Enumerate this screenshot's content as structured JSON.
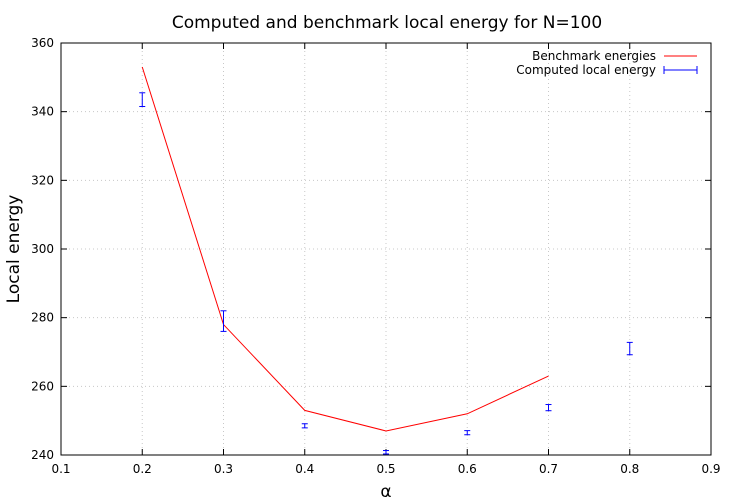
{
  "chart_data": {
    "type": "line",
    "title": "Computed and benchmark local energy for N=100",
    "xlabel": "α",
    "ylabel": "Local energy",
    "xlim": [
      0.1,
      0.9
    ],
    "ylim": [
      240,
      360
    ],
    "xticks": [
      "0.1",
      "0.2",
      "0.3",
      "0.4",
      "0.5",
      "0.6",
      "0.7",
      "0.8",
      "0.9"
    ],
    "yticks": [
      "240",
      "260",
      "280",
      "300",
      "320",
      "340",
      "360"
    ],
    "grid": true,
    "legend_position": "top-right",
    "series": [
      {
        "name": "Benchmark energies",
        "style": "line",
        "color": "#ff0000",
        "x": [
          0.2,
          0.3,
          0.4,
          0.5,
          0.6,
          0.7
        ],
        "y": [
          353,
          278,
          253,
          247,
          252,
          263
        ]
      },
      {
        "name": "Computed local energy",
        "style": "errorbar",
        "color": "#0000ff",
        "x": [
          0.2,
          0.3,
          0.4,
          0.5,
          0.6,
          0.7,
          0.8
        ],
        "y": [
          343.5,
          279,
          248.5,
          240.8,
          246.5,
          253.8,
          271
        ],
        "err": [
          2,
          3,
          0.6,
          0.5,
          0.6,
          0.9,
          1.8
        ]
      }
    ]
  }
}
